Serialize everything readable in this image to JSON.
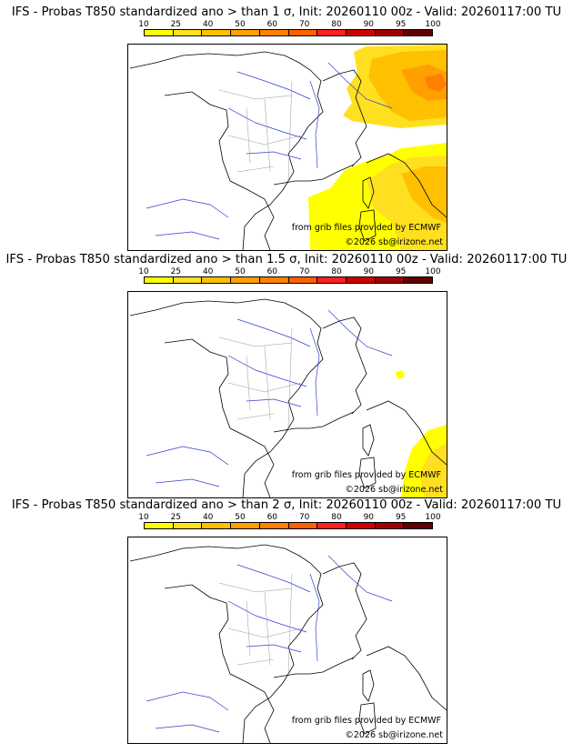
{
  "colorbar": {
    "ticks": [
      "10",
      "25",
      "40",
      "50",
      "60",
      "70",
      "80",
      "90",
      "95",
      "100"
    ],
    "colors": [
      "#ffff00",
      "#ffe020",
      "#ffc000",
      "#ff9f00",
      "#ff8000",
      "#ff6000",
      "#ff2020",
      "#d00000",
      "#a00000",
      "#600000"
    ]
  },
  "panels": [
    {
      "title": "IFS - Probas T850  standardized ano > than 1 σ, Init: 20260110 00z - Valid: 20260117:00 TU",
      "credit_grib": "from grib files provided by ECMWF",
      "credit_copy": "©2026 sb@irizone.net",
      "threshold_sigma": 1
    },
    {
      "title": "IFS - Probas T850  standardized ano > than 1.5 σ, Init: 20260110 00z - Valid: 20260117:00 TU",
      "credit_grib": "from grib files provided by ECMWF",
      "credit_copy": "©2026 sb@irizone.net",
      "threshold_sigma": 1.5
    },
    {
      "title": "IFS - Probas T850  standardized ano > than 2 σ, Init: 20260110 00z - Valid: 20260117:00 TU",
      "credit_grib": "from grib files provided by ECMWF",
      "credit_copy": "©2026 sb@irizone.net",
      "threshold_sigma": 2
    }
  ]
}
